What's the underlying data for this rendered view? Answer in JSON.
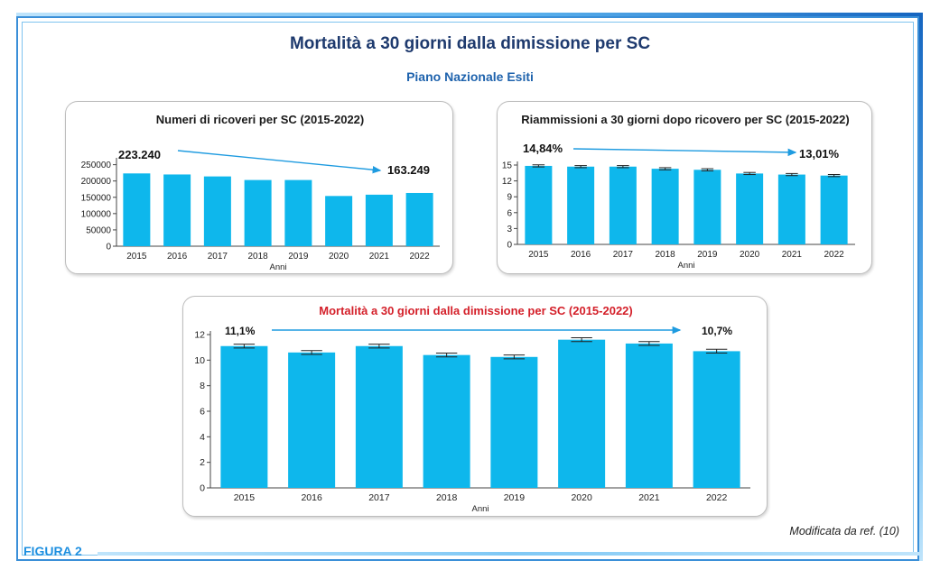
{
  "header": {
    "title": "Mortalità a 30 giorni dalla dimissione per SC",
    "subtitle": "Piano Nazionale Esiti"
  },
  "footer": {
    "figure_label": "FIGURA 2",
    "credit": "Modificata da ref. (10)"
  },
  "colors": {
    "bar": "#0eb7ec",
    "arrow": "#1e9be0",
    "title_red": "#d4202a",
    "title_navy": "#1e3a6e",
    "subtitle_blue": "#1f63ad"
  },
  "chart_data": [
    {
      "type": "bar",
      "title": "Numeri di ricoveri per SC (2015-2022)",
      "xlabel": "Anni",
      "ylabel": "",
      "categories": [
        "2015",
        "2016",
        "2017",
        "2018",
        "2019",
        "2020",
        "2021",
        "2022"
      ],
      "values": [
        223240,
        220000,
        214000,
        203000,
        203000,
        154000,
        158000,
        163249
      ],
      "ylim": [
        0,
        260000
      ],
      "yticks": [
        0,
        50000,
        100000,
        150000,
        200000,
        250000
      ],
      "ytick_labels": [
        "0",
        "50000",
        "100000",
        "150000",
        "200000",
        "250000"
      ],
      "error_bars": false,
      "annotations": {
        "start": "223.240",
        "end": "163.249"
      }
    },
    {
      "type": "bar",
      "title": "Riammissioni a 30 giorni dopo ricovero per SC (2015-2022)",
      "xlabel": "Anni",
      "ylabel": "",
      "categories": [
        "2015",
        "2016",
        "2017",
        "2018",
        "2019",
        "2020",
        "2021",
        "2022"
      ],
      "values": [
        14.84,
        14.7,
        14.7,
        14.3,
        14.1,
        13.4,
        13.2,
        13.01
      ],
      "error": [
        0.2,
        0.2,
        0.2,
        0.2,
        0.2,
        0.2,
        0.2,
        0.2
      ],
      "ylim": [
        0,
        15
      ],
      "yticks": [
        0,
        3,
        6,
        9,
        12,
        15
      ],
      "ytick_labels": [
        "0",
        "3",
        "6",
        "9",
        "12",
        "15"
      ],
      "error_bars": true,
      "annotations": {
        "start": "14,84%",
        "end": "13,01%"
      }
    },
    {
      "type": "bar",
      "title": "Mortalità a 30 giorni dalla dimissione per SC (2015-2022)",
      "xlabel": "Anni",
      "ylabel": "",
      "categories": [
        "2015",
        "2016",
        "2017",
        "2018",
        "2019",
        "2020",
        "2021",
        "2022"
      ],
      "values": [
        11.1,
        10.6,
        11.1,
        10.4,
        10.25,
        11.6,
        11.3,
        10.7
      ],
      "error": [
        0.15,
        0.15,
        0.15,
        0.15,
        0.15,
        0.15,
        0.15,
        0.15
      ],
      "ylim": [
        0,
        12
      ],
      "yticks": [
        0,
        2,
        4,
        6,
        8,
        10,
        12
      ],
      "ytick_labels": [
        "0",
        "2",
        "4",
        "6",
        "8",
        "10",
        "12"
      ],
      "error_bars": true,
      "annotations": {
        "start": "11,1%",
        "end": "10,7%"
      }
    }
  ]
}
